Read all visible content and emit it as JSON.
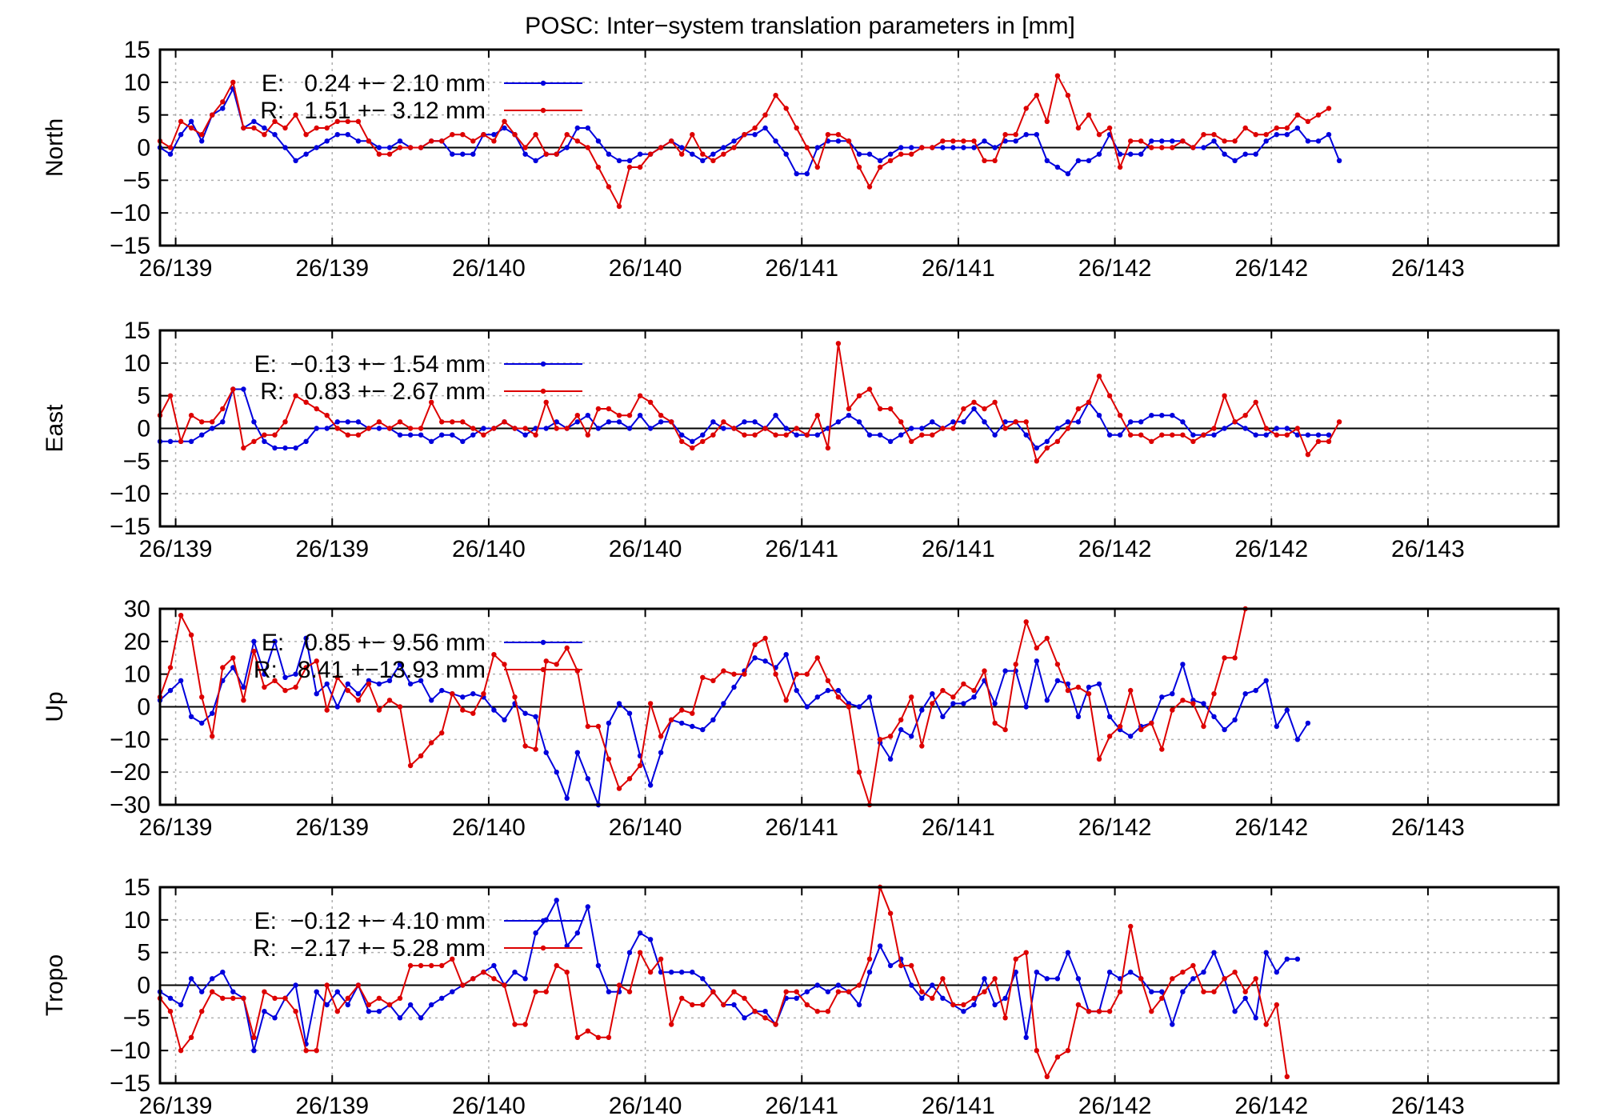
{
  "chart_data": {
    "type": "line",
    "title": "POSC: Inter−system translation parameters in [mm]",
    "x_ticks": [
      "26/139",
      "26/139",
      "26/140",
      "26/140",
      "26/141",
      "26/141",
      "26/142",
      "26/142",
      "26/143"
    ],
    "x_range": [
      0,
      134
    ],
    "panels": [
      {
        "ylabel": "North",
        "ylim": [
          -15,
          15
        ],
        "yticks": [
          "15",
          "10",
          "5",
          "0",
          "−5",
          "−10",
          "−15"
        ],
        "legend": [
          {
            "label": "E:   0.24 +− 2.10 mm",
            "color": "#0000dd"
          },
          {
            "label": "R:   1.51 +− 3.12 mm",
            "color": "#dd0000"
          }
        ],
        "series": [
          {
            "name": "E",
            "color": "#0000dd",
            "values": [
              0,
              -1,
              2,
              4,
              1,
              5,
              6,
              9,
              3,
              4,
              3,
              2,
              0,
              -2,
              -1,
              0,
              1,
              2,
              2,
              1,
              1,
              0,
              0,
              1,
              0,
              0,
              1,
              1,
              -1,
              -1,
              -1,
              2,
              2,
              3,
              2,
              -1,
              -2,
              -1,
              -1,
              0,
              3,
              3,
              1,
              -1,
              -2,
              -2,
              -1,
              -1,
              0,
              1,
              0,
              -1,
              -2,
              -1,
              0,
              1,
              2,
              2,
              3,
              1,
              -1,
              -4,
              -4,
              0,
              1,
              1,
              1,
              -1,
              -1,
              -2,
              -1,
              0,
              0,
              0,
              0,
              0,
              0,
              0,
              0,
              1,
              0,
              1,
              1,
              2,
              2,
              -2,
              -3,
              -4,
              -2,
              -2,
              -1,
              2,
              -1,
              -1,
              -1,
              1,
              1,
              1,
              1,
              0,
              0,
              1,
              -1,
              -2,
              -1,
              -1,
              1,
              2,
              2,
              3,
              1,
              1,
              2,
              -2
            ]
          },
          {
            "name": "R",
            "color": "#dd0000",
            "values": [
              1,
              0,
              4,
              3,
              2,
              5,
              7,
              10,
              3,
              3,
              2,
              4,
              3,
              5,
              2,
              3,
              3,
              4,
              4,
              4,
              1,
              -1,
              -1,
              0,
              0,
              0,
              1,
              1,
              2,
              2,
              1,
              2,
              1,
              4,
              2,
              0,
              2,
              -1,
              -1,
              2,
              1,
              0,
              -3,
              -6,
              -9,
              -3,
              -3,
              -1,
              0,
              1,
              -1,
              2,
              -1,
              -2,
              -1,
              0,
              2,
              3,
              5,
              8,
              6,
              3,
              0,
              -3,
              2,
              2,
              1,
              -3,
              -6,
              -3,
              -2,
              -1,
              -1,
              0,
              0,
              1,
              1,
              1,
              1,
              -2,
              -2,
              2,
              2,
              6,
              8,
              4,
              11,
              8,
              3,
              5,
              2,
              3,
              -3,
              1,
              1,
              0,
              0,
              0,
              1,
              0,
              2,
              2,
              1,
              1,
              3,
              2,
              2,
              3,
              3,
              5,
              4,
              5,
              6
            ]
          }
        ]
      },
      {
        "ylabel": "East",
        "ylim": [
          -15,
          15
        ],
        "yticks": [
          "15",
          "10",
          "5",
          "0",
          "−5",
          "−10",
          "−15"
        ],
        "legend": [
          {
            "label": "E:  −0.13 +− 1.54 mm",
            "color": "#0000dd"
          },
          {
            "label": "R:   0.83 +− 2.67 mm",
            "color": "#dd0000"
          }
        ],
        "series": [
          {
            "name": "E",
            "color": "#0000dd",
            "values": [
              -2,
              -2,
              -2,
              -2,
              -1,
              0,
              1,
              6,
              6,
              1,
              -2,
              -3,
              -3,
              -3,
              -2,
              0,
              0,
              1,
              1,
              1,
              0,
              0,
              0,
              -1,
              -1,
              -1,
              -2,
              -1,
              -1,
              -2,
              -1,
              0,
              0,
              1,
              0,
              -1,
              0,
              0,
              1,
              0,
              1,
              2,
              0,
              1,
              1,
              0,
              2,
              0,
              1,
              1,
              -1,
              -2,
              -1,
              1,
              0,
              0,
              1,
              1,
              0,
              2,
              0,
              -1,
              -1,
              -1,
              0,
              1,
              2,
              1,
              -1,
              -1,
              -2,
              -1,
              0,
              0,
              1,
              0,
              1,
              1,
              3,
              1,
              -1,
              1,
              1,
              -1,
              -3,
              -2,
              0,
              1,
              1,
              4,
              2,
              -1,
              -1,
              1,
              1,
              2,
              2,
              2,
              1,
              -1,
              -1,
              -1,
              0,
              1,
              0,
              -1,
              -1,
              0,
              0,
              -1,
              -1,
              -1,
              -1
            ]
          },
          {
            "name": "R",
            "color": "#dd0000",
            "values": [
              2,
              5,
              -2,
              2,
              1,
              1,
              3,
              6,
              -3,
              -2,
              -1,
              -1,
              1,
              5,
              4,
              3,
              2,
              0,
              -1,
              -1,
              0,
              1,
              0,
              1,
              0,
              0,
              4,
              1,
              1,
              1,
              0,
              -1,
              0,
              1,
              0,
              0,
              -1,
              4,
              0,
              0,
              2,
              -1,
              3,
              3,
              2,
              2,
              5,
              4,
              2,
              1,
              -2,
              -3,
              -2,
              -1,
              1,
              0,
              -1,
              -1,
              0,
              -1,
              -1,
              0,
              -1,
              2,
              -3,
              13,
              3,
              5,
              6,
              3,
              3,
              1,
              -2,
              -1,
              -1,
              0,
              0,
              3,
              4,
              3,
              4,
              0,
              1,
              1,
              -5,
              -3,
              -2,
              0,
              3,
              4,
              8,
              5,
              2,
              -1,
              -1,
              -2,
              -1,
              -1,
              -1,
              -2,
              -1,
              0,
              5,
              1,
              2,
              4,
              0,
              -1,
              -1,
              0,
              -4,
              -2,
              -2,
              1
            ]
          }
        ]
      },
      {
        "ylabel": "Up",
        "ylim": [
          -30,
          30
        ],
        "yticks": [
          "30",
          "20",
          "10",
          "0",
          "−10",
          "−20",
          "−30"
        ],
        "legend": [
          {
            "label": "E:   0.85 +− 9.56 mm",
            "color": "#0000dd"
          },
          {
            "label": "R:   8.41 +−13.93 mm",
            "color": "#dd0000"
          }
        ],
        "series": [
          {
            "name": "E",
            "color": "#0000dd",
            "values": [
              2,
              5,
              8,
              -3,
              -5,
              -2,
              8,
              12,
              6,
              20,
              10,
              20,
              9,
              10,
              21,
              4,
              7,
              0,
              7,
              4,
              8,
              7,
              8,
              13,
              7,
              8,
              2,
              5,
              4,
              3,
              4,
              3,
              -1,
              -4,
              1,
              -2,
              -3,
              -14,
              -20,
              -28,
              -14,
              -22,
              -32,
              -5,
              1,
              -2,
              -15,
              -24,
              -14,
              -4,
              -5,
              -6,
              -7,
              -4,
              1,
              6,
              11,
              15,
              14,
              12,
              16,
              5,
              0,
              3,
              5,
              5,
              1,
              0,
              3,
              -11,
              -16,
              -7,
              -9,
              -1,
              4,
              -3,
              1,
              1,
              3,
              8,
              1,
              11,
              11,
              0,
              14,
              2,
              8,
              7,
              -3,
              6,
              7,
              -3,
              -7,
              -9,
              -6,
              -5,
              3,
              4,
              13,
              2,
              1,
              -3,
              -7,
              -4,
              4,
              5,
              8,
              -6,
              -1,
              -10,
              -5
            ]
          },
          {
            "name": "R",
            "color": "#dd0000",
            "values": [
              3,
              12,
              28,
              22,
              3,
              -9,
              12,
              15,
              2,
              17,
              6,
              8,
              5,
              6,
              12,
              14,
              -1,
              9,
              5,
              2,
              7,
              -1,
              2,
              0,
              -18,
              -15,
              -11,
              -8,
              4,
              -1,
              -2,
              4,
              16,
              13,
              3,
              -12,
              -13,
              14,
              13,
              18,
              11,
              -6,
              -6,
              -16,
              -25,
              -22,
              -18,
              1,
              -9,
              -4,
              -1,
              -2,
              9,
              8,
              11,
              10,
              10,
              19,
              21,
              10,
              2,
              10,
              10,
              15,
              8,
              3,
              0,
              -20,
              -35,
              -10,
              -9,
              -4,
              3,
              -12,
              1,
              5,
              3,
              7,
              5,
              11,
              -5,
              -7,
              13,
              26,
              18,
              21,
              13,
              5,
              6,
              4,
              -16,
              -9,
              -6,
              5,
              -7,
              -5,
              -13,
              -1,
              2,
              1,
              -6,
              4,
              15,
              15,
              33
            ]
          }
        ]
      },
      {
        "ylabel": "Tropo",
        "ylim": [
          -15,
          15
        ],
        "yticks": [
          "15",
          "10",
          "5",
          "0",
          "−5",
          "−10",
          "−15"
        ],
        "legend": [
          {
            "label": "E:  −0.12 +− 4.10 mm",
            "color": "#0000dd"
          },
          {
            "label": "R:  −2.17 +− 5.28 mm",
            "color": "#dd0000"
          }
        ],
        "series": [
          {
            "name": "E",
            "color": "#0000dd",
            "values": [
              -1,
              -2,
              -3,
              1,
              -1,
              1,
              2,
              -1,
              -2,
              -10,
              -4,
              -5,
              -2,
              0,
              -9,
              -1,
              -3,
              -1,
              -3,
              0,
              -4,
              -4,
              -3,
              -5,
              -3,
              -5,
              -3,
              -2,
              -1,
              0,
              1,
              2,
              3,
              0,
              2,
              1,
              8,
              10,
              13,
              6,
              8,
              12,
              3,
              -1,
              -1,
              5,
              8,
              7,
              2,
              2,
              2,
              2,
              1,
              -1,
              -3,
              -3,
              -5,
              -4,
              -4,
              -6,
              -2,
              -2,
              -1,
              0,
              -1,
              0,
              -1,
              -3,
              2,
              6,
              3,
              4,
              0,
              -2,
              0,
              -2,
              -3,
              -4,
              -3,
              1,
              -3,
              -2,
              2,
              -8,
              2,
              1,
              1,
              5,
              1,
              -4,
              -4,
              2,
              1,
              2,
              1,
              -1,
              -1,
              -6,
              -1,
              1,
              2,
              5,
              1,
              -4,
              -2,
              -5,
              5,
              2,
              4,
              4
            ]
          },
          {
            "name": "R",
            "color": "#dd0000",
            "values": [
              -2,
              -4,
              -10,
              -8,
              -4,
              -1,
              -2,
              -2,
              -2,
              -8,
              -1,
              -2,
              -2,
              -4,
              -10,
              -10,
              0,
              -4,
              -2,
              0,
              -3,
              -2,
              -3,
              -2,
              3,
              3,
              3,
              3,
              4,
              0,
              1,
              2,
              1,
              0,
              -6,
              -6,
              -1,
              -1,
              3,
              2,
              -8,
              -7,
              -8,
              -8,
              0,
              -1,
              5,
              2,
              4,
              -6,
              -2,
              -3,
              -3,
              -1,
              -3,
              -1,
              -2,
              -4,
              -5,
              -6,
              -1,
              -1,
              -3,
              -4,
              -4,
              -1,
              -1,
              0,
              4,
              15,
              11,
              3,
              3,
              -1,
              -2,
              1,
              -3,
              -3,
              -2,
              -1,
              1,
              -5,
              4,
              5,
              -10,
              -14,
              -11,
              -10,
              -3,
              -4,
              -4,
              -4,
              -1,
              9,
              1,
              -4,
              -2,
              1,
              2,
              3,
              -1,
              -1,
              1,
              2,
              -1,
              1,
              -6,
              -3,
              -14
            ]
          }
        ]
      }
    ]
  }
}
